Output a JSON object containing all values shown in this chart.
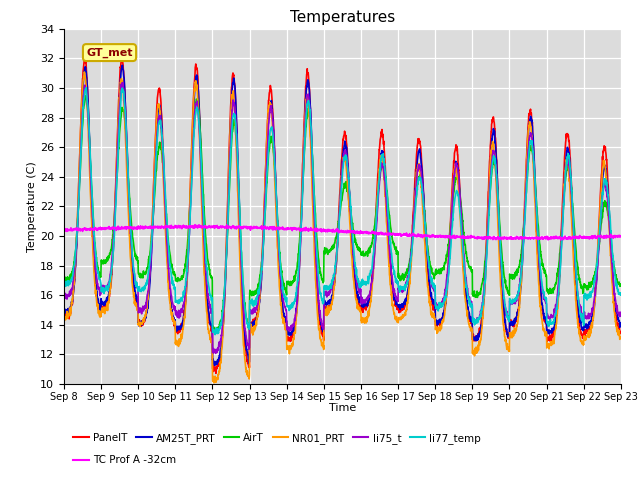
{
  "title": "Temperatures",
  "xlabel": "Time",
  "ylabel": "Temperature (C)",
  "ylim": [
    10,
    34
  ],
  "yticks": [
    10,
    12,
    14,
    16,
    18,
    20,
    22,
    24,
    26,
    28,
    30,
    32,
    34
  ],
  "xtick_labels": [
    "Sep 8",
    "Sep 9",
    "Sep 10",
    "Sep 11",
    "Sep 12",
    "Sep 13",
    "Sep 14",
    "Sep 15",
    "Sep 16",
    "Sep 17",
    "Sep 18",
    "Sep 19",
    "Sep 20",
    "Sep 21",
    "Sep 22",
    "Sep 23"
  ],
  "series": {
    "PanelT": {
      "color": "#ff0000",
      "lw": 1.2
    },
    "AM25T_PRT": {
      "color": "#0000cc",
      "lw": 1.2
    },
    "AirT": {
      "color": "#00cc00",
      "lw": 1.2
    },
    "NR01_PRT": {
      "color": "#ff9900",
      "lw": 1.2
    },
    "li75_t": {
      "color": "#9900cc",
      "lw": 1.2
    },
    "li77_temp": {
      "color": "#00cccc",
      "lw": 1.2
    },
    "TC Prof A -32cm": {
      "color": "#ff00ff",
      "lw": 1.2
    }
  },
  "annotation_text": "GT_met",
  "bg_color": "#dcdcdc",
  "n_days": 15,
  "pts_per_day": 144
}
